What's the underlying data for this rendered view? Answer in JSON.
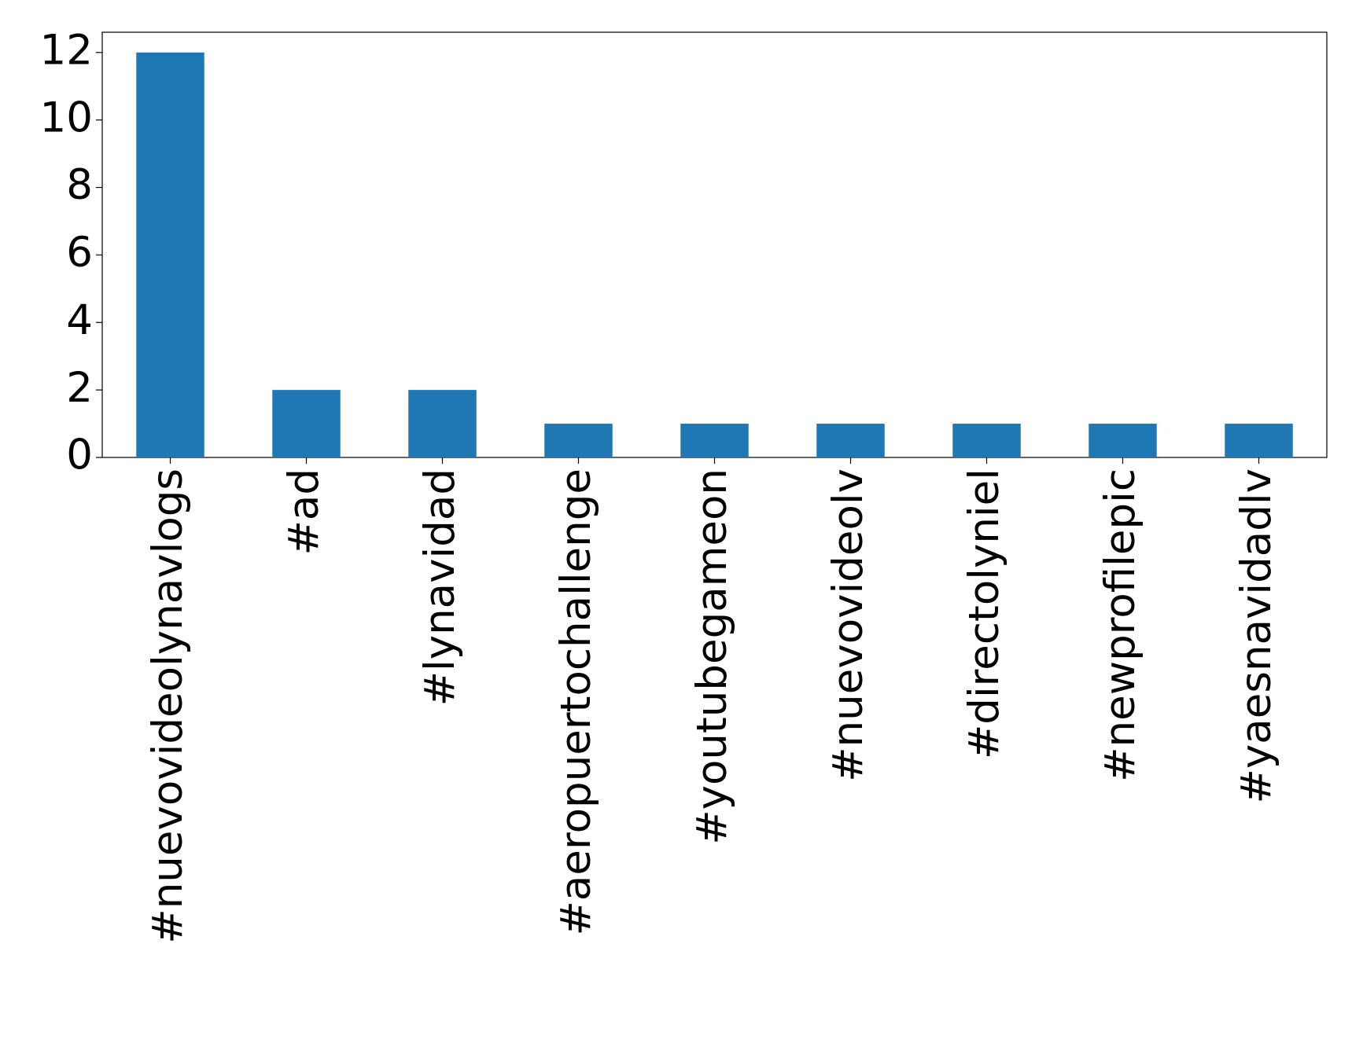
{
  "chart_data": {
    "type": "bar",
    "categories": [
      "#nuevovideolynavlogs",
      "#ad",
      "#lynavidad",
      "#aeropuertochallenge",
      "#youtubegameon",
      "#nuevovideolv",
      "#directolyniel",
      "#newprofilepic",
      "#yaesnavidadlv"
    ],
    "values": [
      12,
      2,
      2,
      1,
      1,
      1,
      1,
      1,
      1
    ],
    "color": "#1f77b4",
    "ylim": [
      0,
      12.6
    ],
    "yticks": [
      0,
      2,
      4,
      6,
      8,
      10,
      12
    ],
    "grid": false
  }
}
